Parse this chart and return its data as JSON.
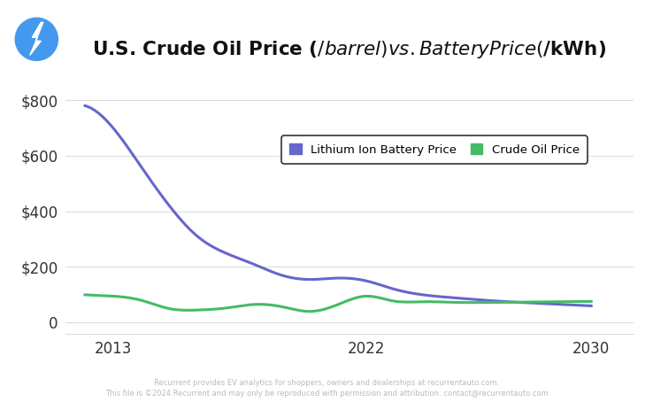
{
  "title": "U.S. Crude Oil Price ($/barrel)vs. Battery Price ($/kWh)",
  "background_color": "#ffffff",
  "plot_bg_color": "#ffffff",
  "battery_years": [
    2012,
    2013,
    2014,
    2015,
    2016,
    2017,
    2018,
    2019,
    2020,
    2021,
    2022,
    2023,
    2024,
    2025,
    2026,
    2027,
    2028,
    2029,
    2030
  ],
  "battery_prices": [
    780,
    700,
    560,
    420,
    310,
    250,
    210,
    170,
    155,
    160,
    150,
    120,
    100,
    90,
    82,
    75,
    70,
    65,
    60
  ],
  "oil_years": [
    2012,
    2013,
    2014,
    2015,
    2016,
    2017,
    2018,
    2019,
    2020,
    2021,
    2022,
    2023,
    2024,
    2025,
    2026,
    2027,
    2028,
    2029,
    2030
  ],
  "oil_prices": [
    100,
    95,
    80,
    50,
    45,
    52,
    65,
    57,
    40,
    65,
    95,
    77,
    75,
    73,
    72,
    73,
    74,
    75,
    76
  ],
  "battery_color": "#6666cc",
  "oil_color": "#44bb66",
  "ylim": [
    -40,
    900
  ],
  "yticks": [
    0,
    200,
    400,
    600,
    800
  ],
  "ytick_labels": [
    "0",
    "$200",
    "$400",
    "$600",
    "$800"
  ],
  "xticks": [
    2013,
    2022,
    2030
  ],
  "legend_battery": "Lithium Ion Battery Price",
  "legend_oil": "Crude Oil Price",
  "footer_line1": "Recurrent provides EV analytics for shoppers, owners and dealerships at recurrentauto.com.",
  "footer_line2": "This file is ©2024 Recurrent and may only be reproduced with permission and attribution: contact@recurrentauto.com",
  "icon_bg_color": "#4499ee",
  "title_fontsize": 15.5,
  "line_width": 2.2,
  "grid_color": "#dddddd",
  "tick_color": "#333333",
  "tick_fontsize": 12
}
